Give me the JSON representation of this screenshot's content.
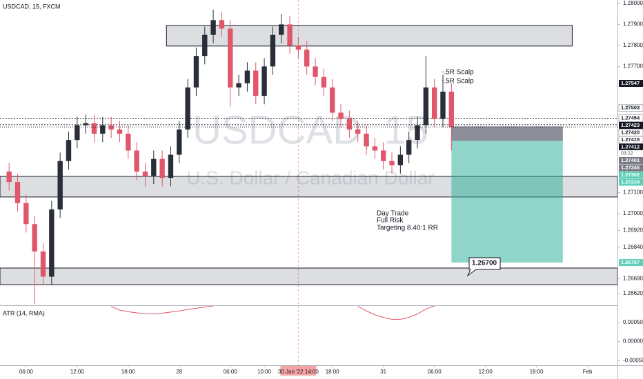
{
  "chart_data": {
    "type": "candlestick",
    "title": "USDCAD, 15, FXCM",
    "watermark": "USDCAD, 15",
    "watermark_subtitle": "U.S. Dollar / Canadian Dollar",
    "up_color": "#2a2e39",
    "down_color": "#e0566a",
    "open": [
      1.272,
      1.2715,
      1.2705,
      1.2695,
      1.2682,
      1.267,
      1.2702,
      1.2725,
      1.2735,
      1.2742,
      1.2743,
      1.2738,
      1.2742,
      1.274,
      1.2738,
      1.273,
      1.272,
      1.2718,
      1.2726,
      1.2717,
      1.2728,
      1.274,
      1.276,
      1.2775,
      1.2785,
      1.2792,
      1.2788,
      1.276,
      1.2762,
      1.2768,
      1.2756,
      1.277,
      1.2785,
      1.279,
      1.278,
      1.2778,
      1.277,
      1.2765,
      1.276,
      1.2748,
      1.2745,
      1.274,
      1.2738,
      1.2732,
      1.273,
      1.2725,
      1.2723,
      1.2728,
      1.2735,
      1.2742,
      1.276,
      1.2745,
      1.2758
    ],
    "high": [
      1.2724,
      1.2719,
      1.2709,
      1.2699,
      1.2686,
      1.2706,
      1.2729,
      1.2739,
      1.2746,
      1.2747,
      1.2747,
      1.2746,
      1.2746,
      1.2744,
      1.2742,
      1.2734,
      1.2724,
      1.273,
      1.273,
      1.2732,
      1.2744,
      1.2764,
      1.2779,
      1.2789,
      1.2797,
      1.2796,
      1.2792,
      1.2766,
      1.2772,
      1.2772,
      1.2774,
      1.2789,
      1.2795,
      1.2794,
      1.2784,
      1.2782,
      1.2774,
      1.2769,
      1.2764,
      1.2752,
      1.2749,
      1.2744,
      1.2742,
      1.2736,
      1.2734,
      1.2729,
      1.2732,
      1.2739,
      1.2746,
      1.2775,
      1.2764,
      1.2766,
      1.2762
    ],
    "low": [
      1.2711,
      1.2701,
      1.2691,
      1.2657,
      1.2666,
      1.2666,
      1.2698,
      1.2721,
      1.2731,
      1.2738,
      1.2734,
      1.2734,
      1.2736,
      1.2734,
      1.2726,
      1.2716,
      1.2713,
      1.2714,
      1.2713,
      1.2713,
      1.2724,
      1.2736,
      1.2756,
      1.2771,
      1.2781,
      1.2784,
      1.2751,
      1.2756,
      1.2758,
      1.2752,
      1.2752,
      1.2766,
      1.2781,
      1.2776,
      1.2774,
      1.2766,
      1.2761,
      1.2756,
      1.2744,
      1.2741,
      1.2736,
      1.2734,
      1.2728,
      1.2726,
      1.2721,
      1.2719,
      1.2719,
      1.2724,
      1.2731,
      1.2738,
      1.2741,
      1.2741,
      1.273
    ],
    "close": [
      1.2715,
      1.2705,
      1.2695,
      1.2682,
      1.267,
      1.2702,
      1.2725,
      1.2735,
      1.2742,
      1.2743,
      1.2738,
      1.2742,
      1.274,
      1.2738,
      1.273,
      1.272,
      1.2718,
      1.2726,
      1.2717,
      1.2728,
      1.274,
      1.276,
      1.2775,
      1.2785,
      1.2792,
      1.2788,
      1.276,
      1.2762,
      1.2768,
      1.2756,
      1.277,
      1.2785,
      1.279,
      1.278,
      1.2778,
      1.277,
      1.2765,
      1.276,
      1.2748,
      1.2745,
      1.274,
      1.2738,
      1.2732,
      1.273,
      1.2725,
      1.2723,
      1.2728,
      1.2735,
      1.2742,
      1.276,
      1.2745,
      1.2758,
      1.27412
    ],
    "xlim": [
      -0.57,
      72.02
    ],
    "xticks": [
      {
        "value": 2.5,
        "label": "06:00"
      },
      {
        "value": 8.5,
        "label": "12:00"
      },
      {
        "value": 14.5,
        "label": "18:00"
      },
      {
        "value": 20.5,
        "label": "28"
      },
      {
        "value": 26.5,
        "label": "06:00"
      },
      {
        "value": 30.5,
        "label": "10:00"
      },
      {
        "value": 34.5,
        "label": "30 Jan '22  14:00"
      },
      {
        "value": 38.5,
        "label": "18:00"
      },
      {
        "value": 44.5,
        "label": "31"
      },
      {
        "value": 50.5,
        "label": "06:00"
      },
      {
        "value": 56.5,
        "label": "12:00"
      },
      {
        "value": 62.5,
        "label": "18:00"
      },
      {
        "value": 68.5,
        "label": "Feb"
      }
    ],
    "ylim": [
      1.26564,
      1.28016
    ],
    "yticks": [
      {
        "value": 1.28,
        "label": "1.28000"
      },
      {
        "value": 1.279,
        "label": "1.27900"
      },
      {
        "value": 1.278,
        "label": "1.27800"
      },
      {
        "value": 1.277,
        "label": "1.27700"
      },
      {
        "value": 1.272,
        "label": "1.27200"
      },
      {
        "value": 1.271,
        "label": "1.27100"
      },
      {
        "value": 1.27,
        "label": "1.27000"
      },
      {
        "value": 1.2692,
        "label": "1.26920"
      },
      {
        "value": 1.2684,
        "label": "1.26840"
      },
      {
        "value": 1.2669,
        "label": "1.26690"
      },
      {
        "value": 1.2662,
        "label": "1.26620"
      }
    ],
    "price_markers": [
      {
        "value": 1.27547,
        "label": "1.27547",
        "color": "#131722"
      },
      {
        "value": 1.27503,
        "label": "1.27503",
        "color": "#ffffff"
      },
      {
        "value": 1.27454,
        "label": "1.27454",
        "color": "#ffffff"
      },
      {
        "value": 1.27423,
        "label": "1.27423",
        "color": "#131722"
      },
      {
        "value": 1.2742,
        "label": "1.27420",
        "color": "#ffffff"
      },
      {
        "value": 1.27415,
        "label": "1.27415",
        "color": "#ffffff"
      },
      {
        "value": 1.27412,
        "label": "1.27412",
        "color": "#131722"
      },
      {
        "value": 1.27401,
        "label": "1.27401",
        "color": "#787b86"
      },
      {
        "value": 1.27346,
        "label": "1.27346",
        "color": "#787b86"
      },
      {
        "value": 1.27302,
        "label": "1.27302",
        "color": "#5fcfb8"
      },
      {
        "value": 1.27234,
        "label": "1.27234",
        "color": "#5fcfb8"
      },
      {
        "value": 1.26767,
        "label": "1.26767",
        "color": "#5fcfb8"
      }
    ],
    "countdown": "03:22",
    "zones": [
      {
        "top": 1.27895,
        "bottom": 1.27797,
        "from": 19.0,
        "to": 66.7
      },
      {
        "top": 1.27177,
        "bottom": 1.27079,
        "from": -0.57,
        "to": 72.02
      },
      {
        "top": 1.26741,
        "bottom": 1.26662,
        "from": -0.57,
        "to": 72.02
      }
    ],
    "position": {
      "entry": 1.27346,
      "stop": 1.27415,
      "target": 1.26767,
      "from": 52.5,
      "to": 65.6
    },
    "levels": [
      1.27454,
      1.27423
    ],
    "session_line": 34.5,
    "annotations": [
      "-.5R Scalp",
      "-.5R Scalp",
      "Day Trade",
      "Full Risk",
      "Targeting 8.40:1 RR"
    ],
    "callout": "1.26700",
    "atr": {
      "title": "ATR (14, RMA)",
      "color": "#e0566a",
      "values": [
        null,
        null,
        null,
        null,
        null,
        null,
        null,
        null,
        null,
        null,
        null,
        null,
        0.00092,
        0.00082,
        0.00078,
        0.00075,
        0.00073,
        0.00072,
        0.00074,
        0.00077,
        0.0008,
        0.00084,
        0.00087,
        0.0009,
        0.00093,
        null,
        null,
        null,
        null,
        null,
        null,
        null,
        null,
        null,
        null,
        null,
        null,
        null,
        null,
        null,
        null,
        0.00092,
        0.0008,
        0.0007,
        0.00063,
        0.00058,
        0.00058,
        0.00063,
        0.00072,
        0.00085,
        0.00093,
        null,
        null
      ],
      "ylim": [
        -0.00062,
        0.00093
      ],
      "yticks": [
        {
          "value": 0.0005,
          "label": "0.00050"
        },
        {
          "value": 0,
          "label": "0.00000"
        },
        {
          "value": -0.0005,
          "label": "-0.00050"
        }
      ]
    }
  }
}
